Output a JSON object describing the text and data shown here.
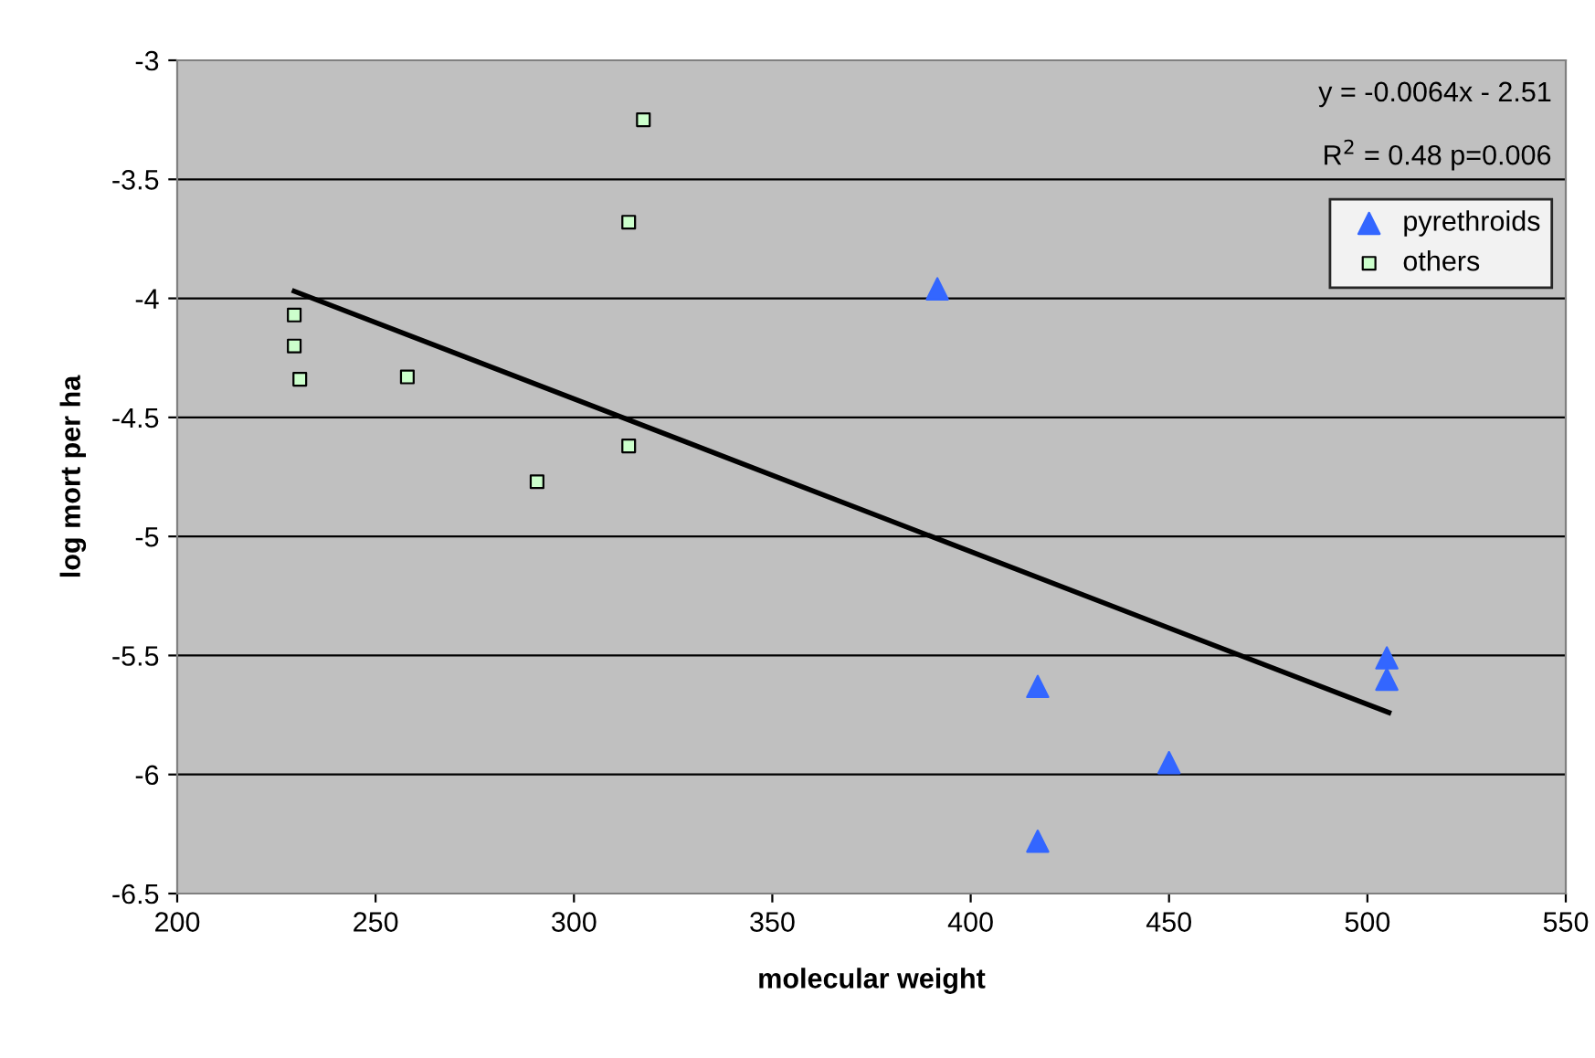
{
  "chart_data": {
    "type": "scatter",
    "xlabel": "molecular weight",
    "ylabel": "log mort per ha",
    "xlim": [
      200,
      550
    ],
    "xticks": [
      200,
      250,
      300,
      350,
      400,
      450,
      500,
      550
    ],
    "ylim": [
      -6.5,
      -3
    ],
    "yticks": [
      -6.5,
      -6,
      -5.5,
      -5,
      -4.5,
      -4,
      -3.5,
      -3
    ],
    "grid": "y",
    "legend": "top right",
    "annotations": [
      "y = -0.0064x - 2.51",
      "R$^{2}$ = 0.48 p=0.006"
    ],
    "series": [
      {
        "name": "pyrethroids",
        "marker": "triangle",
        "color": "#3366ff",
        "x": [
          391.6,
          416.9,
          416.9,
          450,
          504.9,
          504.9
        ],
        "values": [
          -3.96,
          -5.63,
          -6.28,
          -5.95,
          -5.51,
          -5.6
        ]
      },
      {
        "name": "others",
        "marker": "square",
        "color": "#ccffcc",
        "x": [
          229.5,
          229.5,
          230.9,
          258,
          290.7,
          313.8,
          313.8,
          317.5
        ],
        "values": [
          -4.07,
          -4.2,
          -4.34,
          -4.33,
          -4.77,
          -4.62,
          -3.68,
          -3.25
        ]
      },
      {
        "type": "line",
        "color": "#000000",
        "x": [
          229.5,
          505.4
        ],
        "values": [
          -3.97,
          -5.74
        ]
      }
    ]
  }
}
